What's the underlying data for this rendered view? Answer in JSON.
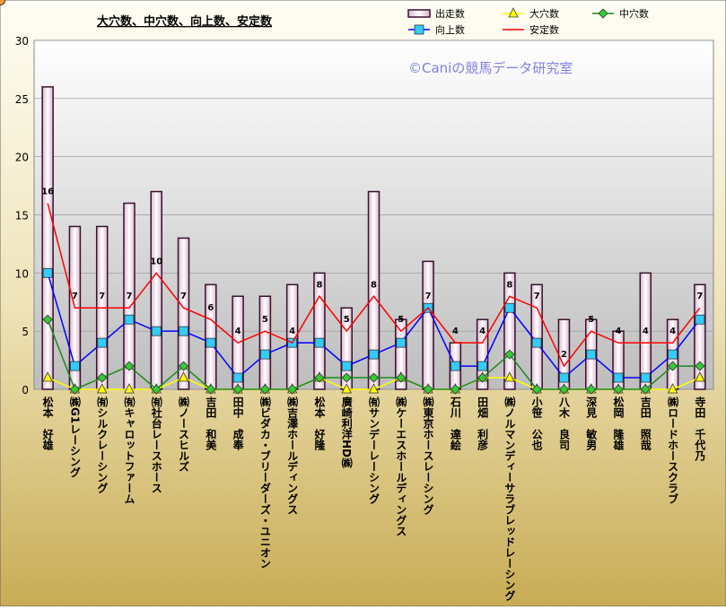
{
  "chart_data": {
    "type": "bar",
    "title": "大穴数、中穴数、向上数、安定数",
    "watermark": "©Caniの競馬データ研究室",
    "categories": [
      "松本　好雄",
      "㈱G1レーシング",
      "㈲シルクレーシング",
      "㈲キャロットファーム",
      "㈲社台レースホース",
      "㈱ノースヒルズ",
      "吉田　和美",
      "田中　成奉",
      "㈱ビダカ・ブリーダーズ・ユニオン",
      "㈱吉澤ホールディングス",
      "松本　好隆",
      "廣崎利洋HD㈱",
      "㈲サンデーレーシング",
      "㈱ケーエスホールディングス",
      "㈱東京ホースレーシング",
      "石川　達絵",
      "田畑　利彦",
      "㈱ノルマンディーサラブレッドレーシング",
      "小笹　公也",
      "八木　良司",
      "深見　敏男",
      "松岡　隆雄",
      "吉田　照哉",
      "㈱ロードホースクラブ",
      "寺田　千代乃"
    ],
    "series": [
      {
        "name": "出走数",
        "type": "bar",
        "color": "#f3e4ee",
        "values": [
          26,
          14,
          14,
          16,
          17,
          13,
          9,
          8,
          8,
          9,
          10,
          7,
          17,
          6,
          11,
          4,
          6,
          10,
          9,
          6,
          6,
          5,
          10,
          6,
          9
        ]
      },
      {
        "name": "大穴数",
        "type": "line",
        "marker": "triangle",
        "color": "#ffff00",
        "values": [
          1,
          0,
          0,
          0,
          0,
          1,
          0,
          0,
          0,
          0,
          1,
          0,
          0,
          1,
          0,
          0,
          1,
          1,
          0,
          0,
          0,
          0,
          0,
          0,
          1
        ]
      },
      {
        "name": "中穴数",
        "type": "line",
        "marker": "diamond",
        "color": "#1a8a1a",
        "marker_color": "#33cc33",
        "values": [
          6,
          0,
          1,
          2,
          0,
          2,
          0,
          0,
          0,
          0,
          1,
          1,
          1,
          1,
          0,
          0,
          1,
          3,
          0,
          0,
          0,
          0,
          0,
          2,
          2
        ]
      },
      {
        "name": "向上数",
        "type": "line",
        "marker": "square",
        "color": "#0000ff",
        "marker_color": "#33ccff",
        "values": [
          10,
          2,
          4,
          6,
          5,
          5,
          4,
          1,
          3,
          4,
          4,
          2,
          3,
          4,
          7,
          2,
          2,
          7,
          4,
          1,
          3,
          1,
          1,
          3,
          6
        ]
      },
      {
        "name": "安定数",
        "type": "line",
        "marker": "circle",
        "color": "#ff0000",
        "marker_color": "#ff9933",
        "labels": true,
        "values": [
          16,
          7,
          7,
          7,
          10,
          7,
          6,
          4,
          5,
          4,
          8,
          5,
          8,
          5,
          7,
          4,
          4,
          8,
          7,
          2,
          5,
          4,
          4,
          4,
          7
        ]
      }
    ],
    "ylim": [
      0,
      30
    ],
    "yticks": [
      0,
      5,
      10,
      15,
      20,
      25,
      30
    ],
    "grid": true
  }
}
